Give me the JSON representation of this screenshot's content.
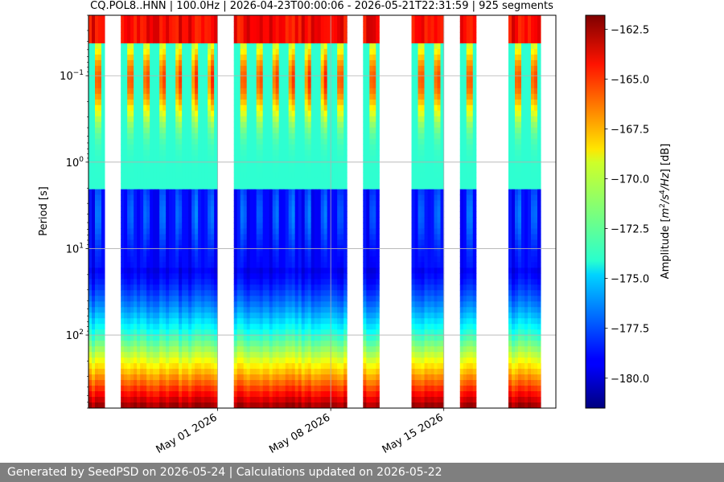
{
  "chart_data": {
    "type": "heatmap",
    "title": "CQ.POL8..HNN | 100.0Hz | 2026-04-23T00:00:06 - 2026-05-21T22:31:59 | 925 segments",
    "ylabel": "Period [s]",
    "y_scale": "log",
    "y_direction": "inverted",
    "ylim": [
      0.02,
      700
    ],
    "yticks": [
      {
        "label": "10",
        "exp": "−1",
        "value": 0.1
      },
      {
        "label": "10",
        "exp": "0",
        "value": 1
      },
      {
        "label": "10",
        "exp": "1",
        "value": 10
      },
      {
        "label": "10",
        "exp": "2",
        "value": 100
      }
    ],
    "x_range": [
      "2026-04-23T00:00:06",
      "2026-05-21T22:31:59"
    ],
    "xticks": [
      {
        "label": "May 01 2026",
        "date": "2026-05-01"
      },
      {
        "label": "May 08 2026",
        "date": "2026-05-08"
      },
      {
        "label": "May 15 2026",
        "date": "2026-05-15"
      }
    ],
    "grid": true,
    "colormap": "jet",
    "colorbar": {
      "label": "Amplitude [m²/s⁴/Hz] [dB]",
      "label_prefix": "Amplitude [",
      "label_unit": "m",
      "label_sup1": "2",
      "label_mid": "/s",
      "label_sup2": "4",
      "label_end": "/Hz",
      "label_suffix": "] [dB]",
      "min": -181.5,
      "max": -161.8,
      "ticks": [
        "−162.5",
        "−165.0",
        "−167.5",
        "−170.0",
        "−172.5",
        "−175.0",
        "−177.5",
        "−180.0"
      ]
    },
    "segments": 925,
    "data_blocks": [
      {
        "start": "2026-04-23",
        "end": "2026-04-24"
      },
      {
        "start": "2026-04-25",
        "end": "2026-05-01"
      },
      {
        "start": "2026-05-02",
        "end": "2026-05-08"
      },
      {
        "start": "2026-05-08",
        "end": "2026-05-09"
      },
      {
        "start": "2026-05-10",
        "end": "2026-05-11"
      },
      {
        "start": "2026-05-13",
        "end": "2026-05-15"
      },
      {
        "start": "2026-05-16",
        "end": "2026-05-17"
      },
      {
        "start": "2026-05-19",
        "end": "2026-05-21"
      }
    ]
  },
  "footer": {
    "text": "Generated by SeedPSD on 2026-05-24 | Calculations updated on 2026-05-22"
  }
}
